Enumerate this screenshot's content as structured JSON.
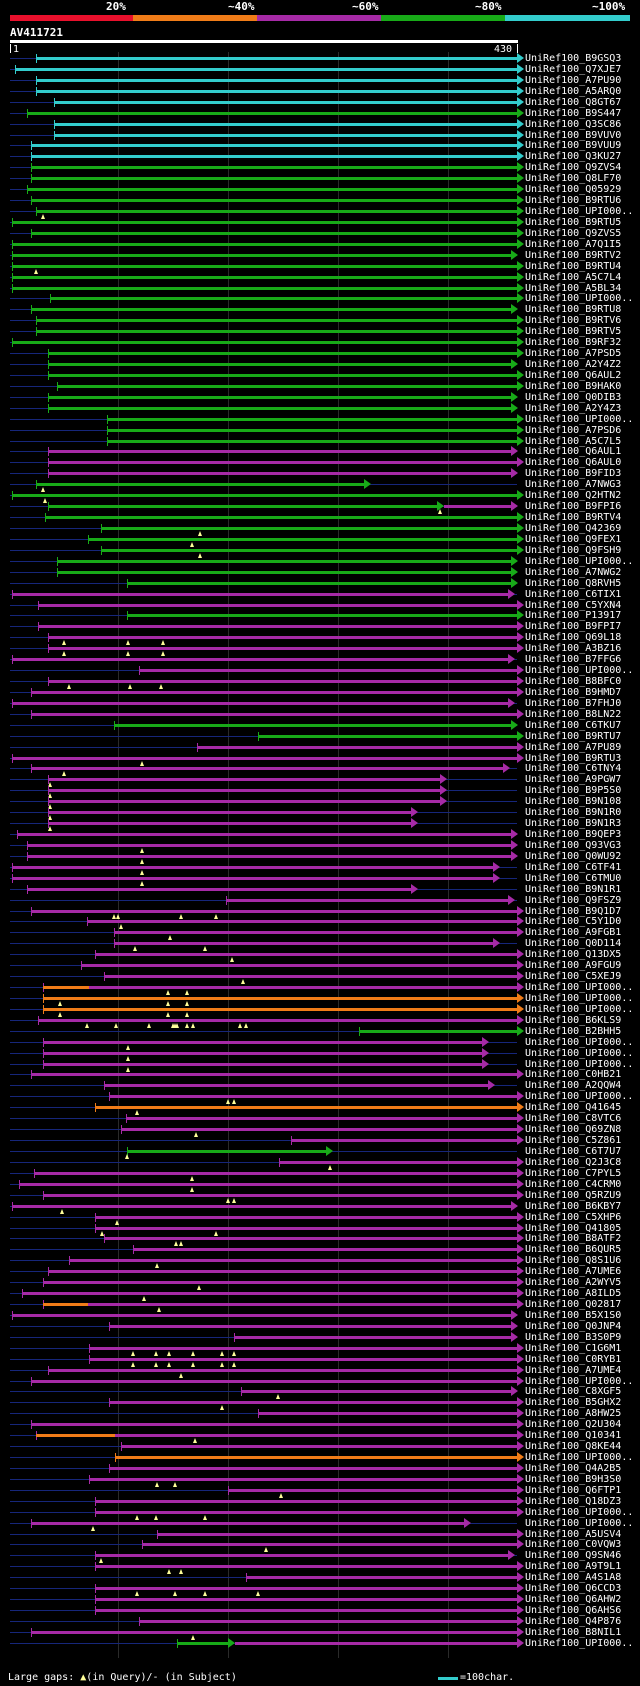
{
  "legend": {
    "percent_labels": [
      "20%",
      "~40%",
      "~60%",
      "~80%",
      "~100%"
    ],
    "colors": {
      "red": "#e8102c",
      "orange": "#f07c18",
      "magenta": "#a62aa6",
      "green": "#18aa18",
      "cyan": "#33cccc"
    }
  },
  "query": {
    "name": "AV411721",
    "start": "1",
    "end": "430"
  },
  "hits": [
    {
      "name": "UniRef100_B9GSQ3",
      "start": 22,
      "end": 430,
      "color": "cyan"
    },
    {
      "name": "UniRef100_Q7XJE7",
      "start": 4,
      "end": 430,
      "color": "cyan"
    },
    {
      "name": "UniRef100_A7PU90",
      "start": 22,
      "end": 430,
      "color": "cyan"
    },
    {
      "name": "UniRef100_A5ARQ0",
      "start": 22,
      "end": 430,
      "color": "cyan"
    },
    {
      "name": "UniRef100_Q8GT67",
      "start": 37,
      "end": 430,
      "color": "cyan"
    },
    {
      "name": "UniRef100_B9S447",
      "start": 14,
      "end": 430,
      "color": "green"
    },
    {
      "name": "UniRef100_Q3SC86",
      "start": 37,
      "end": 430,
      "color": "cyan"
    },
    {
      "name": "UniRef100_B9VUV0",
      "start": 37,
      "end": 430,
      "color": "cyan"
    },
    {
      "name": "UniRef100_B9VUU9",
      "start": 18,
      "end": 430,
      "color": "cyan"
    },
    {
      "name": "UniRef100_Q3KU27",
      "start": 18,
      "end": 430,
      "color": "cyan"
    },
    {
      "name": "UniRef100_Q9ZVS4",
      "start": 18,
      "end": 430,
      "color": "green"
    },
    {
      "name": "UniRef100_Q8LF70",
      "start": 18,
      "end": 430,
      "color": "green"
    },
    {
      "name": "UniRef100_Q05929",
      "start": 14,
      "end": 430,
      "color": "green"
    },
    {
      "name": "UniRef100_B9RTU6",
      "start": 18,
      "end": 430,
      "color": "green"
    },
    {
      "name": "UniRef100_UPI000..",
      "start": 22,
      "end": 430,
      "color": "green",
      "gaps": [
        28
      ]
    },
    {
      "name": "UniRef100_B9RTU5",
      "start": 2,
      "end": 430,
      "color": "green"
    },
    {
      "name": "UniRef100_Q9ZVS5",
      "start": 18,
      "end": 430,
      "color": "green"
    },
    {
      "name": "UniRef100_A7Q1I5",
      "start": 2,
      "end": 430,
      "color": "green"
    },
    {
      "name": "UniRef100_B9RTV2",
      "start": 2,
      "end": 425,
      "color": "green"
    },
    {
      "name": "UniRef100_B9RTU4",
      "start": 2,
      "end": 430,
      "color": "green",
      "gaps": [
        22
      ]
    },
    {
      "name": "UniRef100_A5C7L4",
      "start": 2,
      "end": 430,
      "color": "green"
    },
    {
      "name": "UniRef100_A5BL34",
      "start": 2,
      "end": 430,
      "color": "green"
    },
    {
      "name": "UniRef100_UPI000..",
      "start": 34,
      "end": 430,
      "color": "green"
    },
    {
      "name": "UniRef100_B9RTU8",
      "start": 18,
      "end": 425,
      "color": "green"
    },
    {
      "name": "UniRef100_B9RTV6",
      "start": 22,
      "end": 430,
      "color": "green"
    },
    {
      "name": "UniRef100_B9RTV5",
      "start": 22,
      "end": 430,
      "color": "green"
    },
    {
      "name": "UniRef100_B9RF32",
      "start": 2,
      "end": 430,
      "color": "green"
    },
    {
      "name": "UniRef100_A7PSD5",
      "start": 32,
      "end": 430,
      "color": "green"
    },
    {
      "name": "UniRef100_A2Y4Z2",
      "start": 32,
      "end": 425,
      "color": "green"
    },
    {
      "name": "UniRef100_Q6AUL2",
      "start": 32,
      "end": 430,
      "color": "green"
    },
    {
      "name": "UniRef100_B9HAK0",
      "start": 40,
      "end": 430,
      "color": "green"
    },
    {
      "name": "UniRef100_Q0DIB3",
      "start": 32,
      "end": 425,
      "color": "green"
    },
    {
      "name": "UniRef100_A2Y4Z3",
      "start": 32,
      "end": 425,
      "color": "green"
    },
    {
      "name": "UniRef100_UPI000..",
      "start": 82,
      "end": 430,
      "color": "green"
    },
    {
      "name": "UniRef100_A7PSD6",
      "start": 82,
      "end": 430,
      "color": "green"
    },
    {
      "name": "UniRef100_A5C7L5",
      "start": 82,
      "end": 430,
      "color": "green"
    },
    {
      "name": "UniRef100_Q6AUL1",
      "start": 32,
      "end": 425,
      "color": "magenta"
    },
    {
      "name": "UniRef100_Q6AUL0",
      "start": 32,
      "end": 430,
      "color": "magenta"
    },
    {
      "name": "UniRef100_B9FID3",
      "start": 32,
      "end": 425,
      "color": "magenta"
    },
    {
      "name": "UniRef100_A7NWG3",
      "start": 22,
      "end": 300,
      "color": "green",
      "gaps": [
        28
      ]
    },
    {
      "name": "UniRef100_Q2HTN2",
      "start": 2,
      "end": 430,
      "color": "green",
      "gaps": [
        30
      ]
    },
    {
      "name": "UniRef100_B9FPI6",
      "start": 32,
      "end": 362,
      "color": "green",
      "gaps": [
        365
      ],
      "extend": {
        "end": 425,
        "color": "magenta"
      }
    },
    {
      "name": "UniRef100_B9RTV4",
      "start": 30,
      "end": 430,
      "color": "green"
    },
    {
      "name": "UniRef100_Q42369",
      "start": 77,
      "end": 430,
      "color": "green",
      "gaps": [
        161
      ]
    },
    {
      "name": "UniRef100_Q9FEX1",
      "start": 66,
      "end": 430,
      "color": "green",
      "gaps": [
        154
      ]
    },
    {
      "name": "UniRef100_Q9FSH9",
      "start": 77,
      "end": 430,
      "color": "green",
      "gaps": [
        161
      ]
    },
    {
      "name": "UniRef100_UPI000..",
      "start": 40,
      "end": 425,
      "color": "green"
    },
    {
      "name": "UniRef100_A7NWG2",
      "start": 40,
      "end": 425,
      "color": "green"
    },
    {
      "name": "UniRef100_Q8RVH5",
      "start": 99,
      "end": 425,
      "color": "green"
    },
    {
      "name": "UniRef100_C6TIX1",
      "start": 2,
      "end": 422,
      "color": "magenta"
    },
    {
      "name": "UniRef100_C5YXN4",
      "start": 24,
      "end": 430,
      "color": "magenta"
    },
    {
      "name": "UniRef100_P13917",
      "start": 99,
      "end": 430,
      "color": "green"
    },
    {
      "name": "UniRef100_B9FPI7",
      "start": 24,
      "end": 430,
      "color": "magenta"
    },
    {
      "name": "UniRef100_Q69L18",
      "start": 32,
      "end": 430,
      "color": "magenta",
      "gaps": [
        46,
        100,
        130
      ]
    },
    {
      "name": "UniRef100_A3BZ16",
      "start": 32,
      "end": 430,
      "color": "magenta",
      "gaps": [
        46,
        100,
        130
      ]
    },
    {
      "name": "UniRef100_B7FFG6",
      "start": 2,
      "end": 422,
      "color": "magenta"
    },
    {
      "name": "UniRef100_UPI000..",
      "start": 109,
      "end": 430,
      "color": "magenta"
    },
    {
      "name": "UniRef100_B8BFC0",
      "start": 32,
      "end": 430,
      "color": "magenta",
      "gaps": [
        50,
        102,
        128
      ]
    },
    {
      "name": "UniRef100_B9HMD7",
      "start": 18,
      "end": 430,
      "color": "magenta"
    },
    {
      "name": "UniRef100_B7FHJ0",
      "start": 2,
      "end": 422,
      "color": "magenta"
    },
    {
      "name": "UniRef100_B8LN22",
      "start": 18,
      "end": 430,
      "color": "magenta"
    },
    {
      "name": "UniRef100_C6TKU7",
      "start": 88,
      "end": 425,
      "color": "green"
    },
    {
      "name": "UniRef100_B9RTU7",
      "start": 210,
      "end": 430,
      "color": "green"
    },
    {
      "name": "UniRef100_A7PU89",
      "start": 159,
      "end": 430,
      "color": "magenta"
    },
    {
      "name": "UniRef100_B9RTU3",
      "start": 2,
      "end": 430,
      "color": "magenta",
      "gaps": [
        112
      ]
    },
    {
      "name": "UniRef100_C6TNY4",
      "start": 18,
      "end": 418,
      "color": "magenta",
      "gaps": [
        46
      ]
    },
    {
      "name": "UniRef100_A9PGW7",
      "start": 32,
      "end": 365,
      "color": "magenta",
      "gaps": [
        34
      ]
    },
    {
      "name": "UniRef100_B9P5S0",
      "start": 32,
      "end": 365,
      "color": "magenta",
      "gaps": [
        34
      ]
    },
    {
      "name": "UniRef100_B9N108",
      "start": 32,
      "end": 365,
      "color": "magenta",
      "gaps": [
        34
      ]
    },
    {
      "name": "UniRef100_B9N1R0",
      "start": 32,
      "end": 340,
      "color": "magenta",
      "gaps": [
        34
      ]
    },
    {
      "name": "UniRef100_B9N1R3",
      "start": 32,
      "end": 340,
      "color": "magenta",
      "gaps": [
        34
      ]
    },
    {
      "name": "UniRef100_B9QEP3",
      "start": 6,
      "end": 425,
      "color": "magenta"
    },
    {
      "name": "UniRef100_Q93VG3",
      "start": 14,
      "end": 425,
      "color": "magenta",
      "gaps": [
        112
      ]
    },
    {
      "name": "UniRef100_Q0WU92",
      "start": 14,
      "end": 425,
      "color": "magenta",
      "gaps": [
        112
      ]
    },
    {
      "name": "UniRef100_C6TF41",
      "start": 2,
      "end": 410,
      "color": "magenta",
      "gaps": [
        112
      ]
    },
    {
      "name": "UniRef100_C6TMU0",
      "start": 2,
      "end": 410,
      "color": "magenta",
      "gaps": [
        112
      ]
    },
    {
      "name": "UniRef100_B9N1R1",
      "start": 14,
      "end": 340,
      "color": "magenta"
    },
    {
      "name": "UniRef100_Q9FSZ9",
      "start": 183,
      "end": 422,
      "color": "magenta"
    },
    {
      "name": "UniRef100_B9Q1D7",
      "start": 18,
      "end": 430,
      "color": "magenta",
      "gaps": [
        88,
        92,
        145,
        175
      ]
    },
    {
      "name": "UniRef100_C5Y1D0",
      "start": 65,
      "end": 430,
      "color": "magenta",
      "gaps": [
        94
      ]
    },
    {
      "name": "UniRef100_A9FGB1",
      "start": 88,
      "end": 430,
      "color": "magenta",
      "gaps": [
        136
      ]
    },
    {
      "name": "UniRef100_Q0D114",
      "start": 88,
      "end": 410,
      "color": "magenta",
      "gaps": [
        106,
        165
      ]
    },
    {
      "name": "UniRef100_Q13DX5",
      "start": 72,
      "end": 430,
      "color": "magenta",
      "gaps": [
        188
      ]
    },
    {
      "name": "UniRef100_A9FGU9",
      "start": 60,
      "end": 430,
      "color": "magenta"
    },
    {
      "name": "UniRef100_C5XEJ9",
      "start": 80,
      "end": 430,
      "color": "magenta",
      "gaps": [
        198
      ]
    },
    {
      "name": "UniRef100_UPI000..",
      "start": 28,
      "end": 430,
      "color": "magenta",
      "orange_until": 67,
      "gaps": [
        134,
        150
      ]
    },
    {
      "name": "UniRef100_UPI000..",
      "start": 28,
      "end": 430,
      "color": "orange",
      "gaps": [
        42,
        134,
        150
      ]
    },
    {
      "name": "UniRef100_UPI000..",
      "start": 28,
      "end": 430,
      "color": "orange",
      "gaps": [
        42,
        134,
        150
      ]
    },
    {
      "name": "UniRef100_B6KLS9",
      "start": 24,
      "end": 430,
      "color": "magenta",
      "gaps": [
        65,
        90,
        118,
        138,
        140,
        142,
        150,
        155,
        195,
        200
      ]
    },
    {
      "name": "UniRef100_B2BHH5",
      "start": 296,
      "end": 430,
      "color": "green"
    },
    {
      "name": "UniRef100_UPI000..",
      "start": 28,
      "end": 400,
      "color": "magenta",
      "gaps": [
        100
      ]
    },
    {
      "name": "UniRef100_UPI000..",
      "start": 28,
      "end": 400,
      "color": "magenta",
      "gaps": [
        100
      ]
    },
    {
      "name": "UniRef100_UPI000..",
      "start": 28,
      "end": 400,
      "color": "magenta",
      "gaps": [
        100
      ]
    },
    {
      "name": "UniRef100_C0HB21",
      "start": 18,
      "end": 430,
      "color": "magenta"
    },
    {
      "name": "UniRef100_A2QQW4",
      "start": 80,
      "end": 405,
      "color": "magenta"
    },
    {
      "name": "UniRef100_UPI000..",
      "start": 84,
      "end": 430,
      "color": "magenta",
      "gaps": [
        185,
        190
      ]
    },
    {
      "name": "UniRef100_Q41645",
      "start": 72,
      "end": 430,
      "color": "orange",
      "gaps": [
        108
      ]
    },
    {
      "name": "UniRef100_C8VTC6",
      "start": 98,
      "end": 430,
      "color": "magenta"
    },
    {
      "name": "UniRef100_Q69ZN8",
      "start": 94,
      "end": 430,
      "color": "magenta",
      "gaps": [
        158
      ]
    },
    {
      "name": "UniRef100_C5Z861",
      "start": 238,
      "end": 430,
      "color": "magenta"
    },
    {
      "name": "UniRef100_C6T7U7",
      "start": 99,
      "end": 268,
      "color": "green",
      "gaps": [
        99
      ]
    },
    {
      "name": "UniRef100_Q2J3C8",
      "start": 228,
      "end": 430,
      "color": "magenta",
      "gaps": [
        271
      ]
    },
    {
      "name": "UniRef100_C7PYL5",
      "start": 20,
      "end": 430,
      "color": "magenta",
      "gaps": [
        154
      ]
    },
    {
      "name": "UniRef100_C4CRM0",
      "start": 8,
      "end": 430,
      "color": "magenta",
      "gaps": [
        154
      ]
    },
    {
      "name": "UniRef100_Q5RZU9",
      "start": 28,
      "end": 430,
      "color": "magenta",
      "gaps": [
        185,
        190
      ]
    },
    {
      "name": "UniRef100_B6KBY7",
      "start": 2,
      "end": 425,
      "color": "magenta",
      "gaps": [
        44
      ]
    },
    {
      "name": "UniRef100_C5XHP6",
      "start": 72,
      "end": 430,
      "color": "magenta",
      "gaps": [
        91
      ]
    },
    {
      "name": "UniRef100_Q41805",
      "start": 72,
      "end": 430,
      "color": "magenta",
      "gaps": [
        78,
        175
      ]
    },
    {
      "name": "UniRef100_B8ATF2",
      "start": 80,
      "end": 430,
      "color": "magenta",
      "gaps": [
        141,
        145
      ]
    },
    {
      "name": "UniRef100_B6QUR5",
      "start": 104,
      "end": 430,
      "color": "magenta"
    },
    {
      "name": "UniRef100_Q8S1U6",
      "start": 50,
      "end": 430,
      "color": "magenta",
      "gaps": [
        125
      ]
    },
    {
      "name": "UniRef100_A7UME6",
      "start": 32,
      "end": 430,
      "color": "magenta"
    },
    {
      "name": "UniRef100_A2WYV5",
      "start": 28,
      "end": 430,
      "color": "magenta",
      "gaps": [
        160
      ]
    },
    {
      "name": "UniRef100_A8ILD5",
      "start": 10,
      "end": 430,
      "color": "magenta",
      "gaps": [
        114
      ]
    },
    {
      "name": "UniRef100_Q02817",
      "start": 28,
      "end": 430,
      "color": "magenta",
      "orange_until": 66,
      "gaps": [
        126
      ]
    },
    {
      "name": "UniRef100_B5X1S0",
      "start": 2,
      "end": 425,
      "color": "magenta"
    },
    {
      "name": "UniRef100_Q0JNP4",
      "start": 84,
      "end": 425,
      "color": "magenta"
    },
    {
      "name": "UniRef100_B3S0P9",
      "start": 190,
      "end": 425,
      "color": "magenta"
    },
    {
      "name": "UniRef100_C1G6M1",
      "start": 67,
      "end": 430,
      "color": "magenta",
      "gaps": [
        104,
        124,
        135,
        155,
        180,
        190
      ]
    },
    {
      "name": "UniRef100_C0RYB1",
      "start": 67,
      "end": 430,
      "color": "magenta",
      "gaps": [
        104,
        124,
        135,
        155,
        180,
        190
      ]
    },
    {
      "name": "UniRef100_A7UME4",
      "start": 32,
      "end": 430,
      "color": "magenta",
      "gaps": [
        145
      ]
    },
    {
      "name": "UniRef100_UPI000..",
      "start": 18,
      "end": 430,
      "color": "magenta"
    },
    {
      "name": "UniRef100_C8XGF5",
      "start": 196,
      "end": 425,
      "color": "magenta",
      "gaps": [
        227
      ]
    },
    {
      "name": "UniRef100_B5GHX2",
      "start": 84,
      "end": 430,
      "color": "magenta",
      "gaps": [
        180
      ]
    },
    {
      "name": "UniRef100_A8HW25",
      "start": 210,
      "end": 430,
      "color": "magenta"
    },
    {
      "name": "UniRef100_Q2U304",
      "start": 18,
      "end": 430,
      "color": "magenta"
    },
    {
      "name": "UniRef100_Q10341",
      "start": 22,
      "end": 430,
      "color": "magenta",
      "orange_until": 89,
      "gaps": [
        157
      ]
    },
    {
      "name": "UniRef100_Q8KE44",
      "start": 94,
      "end": 430,
      "color": "magenta"
    },
    {
      "name": "UniRef100_UPI000..",
      "start": 89,
      "end": 430,
      "color": "orange"
    },
    {
      "name": "UniRef100_Q4A2B5",
      "start": 84,
      "end": 430,
      "color": "magenta"
    },
    {
      "name": "UniRef100_B9H3S0",
      "start": 67,
      "end": 430,
      "color": "magenta",
      "gaps": [
        125,
        140
      ]
    },
    {
      "name": "UniRef100_Q6FTP1",
      "start": 185,
      "end": 430,
      "color": "magenta",
      "gaps": [
        230
      ]
    },
    {
      "name": "UniRef100_Q18DZ3",
      "start": 72,
      "end": 430,
      "color": "magenta"
    },
    {
      "name": "UniRef100_UPI000..",
      "start": 72,
      "end": 430,
      "color": "magenta",
      "gaps": [
        108,
        124,
        165
      ]
    },
    {
      "name": "UniRef100_UPI000..",
      "start": 18,
      "end": 385,
      "color": "magenta",
      "gaps": [
        70
      ]
    },
    {
      "name": "UniRef100_A5USV4",
      "start": 125,
      "end": 430,
      "color": "magenta"
    },
    {
      "name": "UniRef100_C0VQW3",
      "start": 112,
      "end": 430,
      "color": "magenta",
      "gaps": [
        217
      ]
    },
    {
      "name": "UniRef100_Q9SN46",
      "start": 72,
      "end": 422,
      "color": "magenta",
      "gaps": [
        77
      ]
    },
    {
      "name": "UniRef100_A9T9L1",
      "start": 72,
      "end": 430,
      "color": "magenta",
      "gaps": [
        135,
        145
      ]
    },
    {
      "name": "UniRef100_A4S1A8",
      "start": 200,
      "end": 430,
      "color": "magenta"
    },
    {
      "name": "UniRef100_Q6CCD3",
      "start": 72,
      "end": 430,
      "color": "magenta",
      "gaps": [
        108,
        140,
        165,
        210
      ]
    },
    {
      "name": "UniRef100_Q6AHW2",
      "start": 72,
      "end": 430,
      "color": "magenta"
    },
    {
      "name": "UniRef100_Q6AHS6",
      "start": 72,
      "end": 430,
      "color": "magenta"
    },
    {
      "name": "UniRef100_Q4P876",
      "start": 109,
      "end": 430,
      "color": "magenta"
    },
    {
      "name": "UniRef100_B8NIL1",
      "start": 18,
      "end": 430,
      "color": "magenta",
      "gaps": [
        155
      ]
    },
    {
      "name": "UniRef100_UPI000..",
      "start": 142,
      "end": 185,
      "color": "green",
      "extend": {
        "end": 430,
        "color": "magenta"
      }
    }
  ],
  "footer": {
    "large_gaps_label": "Large gaps:",
    "in_query": "(in Query)/",
    "in_subject": "(in Subject)",
    "scale_label": "=100char."
  }
}
